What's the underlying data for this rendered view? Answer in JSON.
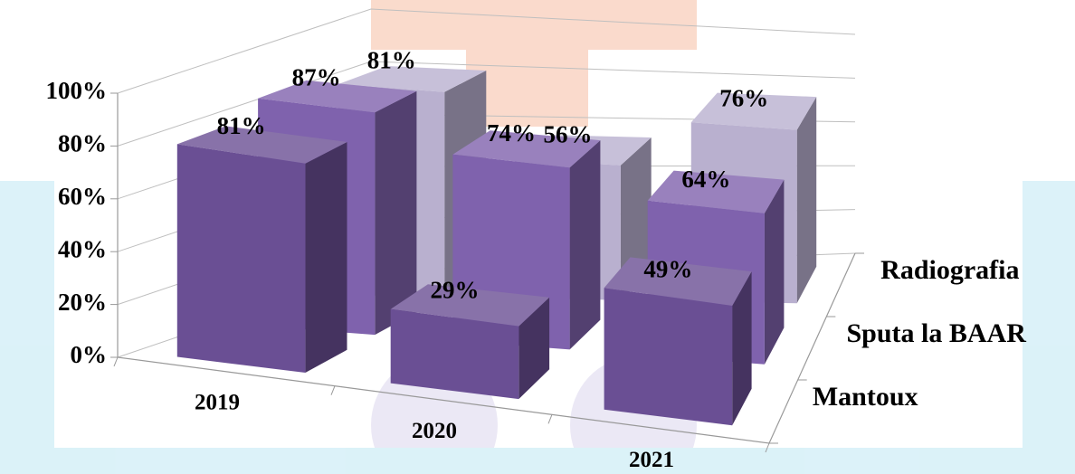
{
  "chart_data": {
    "type": "bar3d",
    "categories": [
      "2019",
      "2020",
      "2021"
    ],
    "series": [
      {
        "name": "Mantoux",
        "color": "#6a4f94",
        "values": [
          81,
          29,
          49
        ],
        "value_labels": [
          "81%",
          "29%",
          "49%"
        ]
      },
      {
        "name": "Sputa la BAAR",
        "color": "#7f62ad",
        "values": [
          87,
          74,
          64
        ],
        "value_labels": [
          "87%",
          "74%",
          "64%"
        ]
      },
      {
        "name": "Radiografia",
        "color": "#b9b0cf",
        "values": [
          81,
          56,
          76
        ],
        "value_labels": [
          "81%",
          "56%",
          "76%"
        ]
      }
    ],
    "ylim": [
      0,
      100
    ],
    "yticks": [
      {
        "value": 0,
        "label": "0%"
      },
      {
        "value": 20,
        "label": "20%"
      },
      {
        "value": 40,
        "label": "40%"
      },
      {
        "value": 60,
        "label": "60%"
      },
      {
        "value": 80,
        "label": "80%"
      },
      {
        "value": 100,
        "label": "100%"
      }
    ],
    "grid": true
  }
}
